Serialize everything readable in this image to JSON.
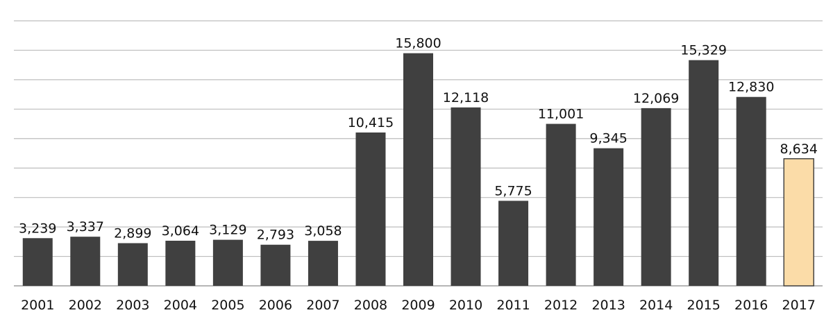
{
  "chart_data": {
    "type": "bar",
    "categories": [
      "2001",
      "2002",
      "2003",
      "2004",
      "2005",
      "2006",
      "2007",
      "2008",
      "2009",
      "2010",
      "2011",
      "2012",
      "2013",
      "2014",
      "2015",
      "2016",
      "2017"
    ],
    "values": [
      3239,
      3337,
      2899,
      3064,
      3129,
      2793,
      3058,
      10415,
      15800,
      12118,
      5775,
      11001,
      9345,
      12069,
      15329,
      12830,
      8634
    ],
    "value_labels": [
      "3,239",
      "3,337",
      "2,899",
      "3,064",
      "3,129",
      "2,793",
      "3,058",
      "10,415",
      "15,800",
      "12,118",
      "5,775",
      "11,001",
      "9,345",
      "12,069",
      "15,329",
      "12,830",
      "8,634"
    ],
    "title": "",
    "xlabel": "",
    "ylabel": "",
    "ylim": [
      0,
      18000
    ],
    "grid": true,
    "legend": "none",
    "colors": {
      "bar": "#404040",
      "highlight_bar": "#fbdca8",
      "highlight_border": "#3a3a3a",
      "grid": "#bdbdbd"
    },
    "highlight_category": "2017"
  }
}
